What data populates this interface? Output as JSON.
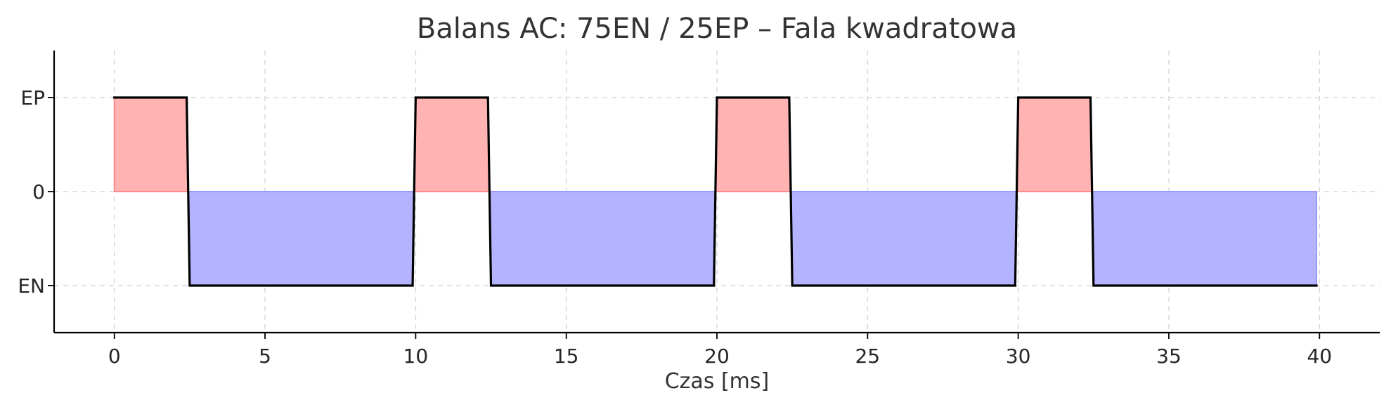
{
  "chart_data": {
    "type": "area",
    "title": "Balans AC: 75EN / 25EP – Fala kwadratowa",
    "xlabel": "Czas [ms]",
    "ylabel": "",
    "xlim": [
      -2,
      42
    ],
    "ylim": [
      -1.5,
      1.5
    ],
    "x_ticks": [
      0,
      5,
      10,
      15,
      20,
      25,
      30,
      35,
      40
    ],
    "x_tick_labels": [
      "0",
      "5",
      "10",
      "15",
      "20",
      "25",
      "30",
      "35",
      "40"
    ],
    "y_ticks": [
      -1,
      0,
      1
    ],
    "y_tick_labels": [
      "EN",
      "0",
      "EP"
    ],
    "grid": true,
    "legend": "none",
    "line_color": "#000000",
    "positive_fill_color": "#ffb3b3",
    "negative_fill_color": "#b3b3ff",
    "series": [
      {
        "x": [
          0,
          2.4,
          2.5,
          9.9,
          10.0,
          12.4,
          12.5,
          19.9,
          20.0,
          22.4,
          22.5,
          29.9,
          30.0,
          32.4,
          32.5,
          39.9
        ],
        "y": [
          1,
          1,
          -1,
          -1,
          1,
          1,
          -1,
          -1,
          1,
          1,
          -1,
          -1,
          1,
          1,
          -1,
          -1
        ]
      }
    ]
  }
}
